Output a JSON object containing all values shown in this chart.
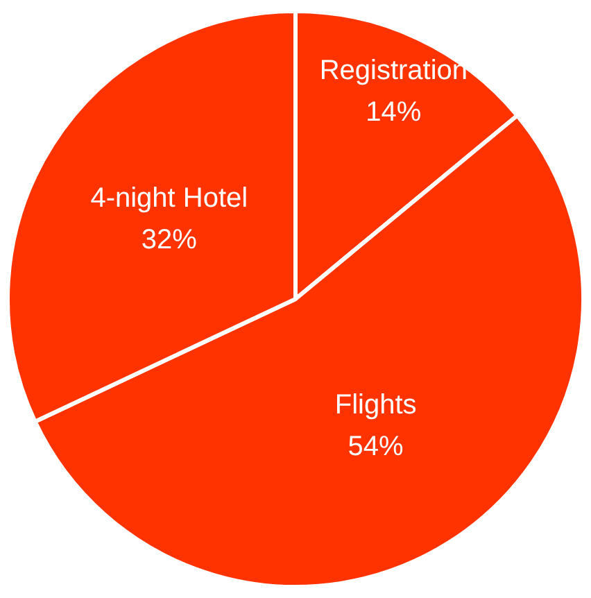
{
  "chart_data": {
    "type": "pie",
    "categories": [
      "Registration",
      "Flights",
      "4-night Hotel"
    ],
    "values": [
      14,
      54,
      32
    ],
    "value_labels": [
      "14%",
      "54%",
      "32%"
    ],
    "colors": [
      "#ff3300",
      "#ff3300",
      "#ff3300"
    ]
  }
}
